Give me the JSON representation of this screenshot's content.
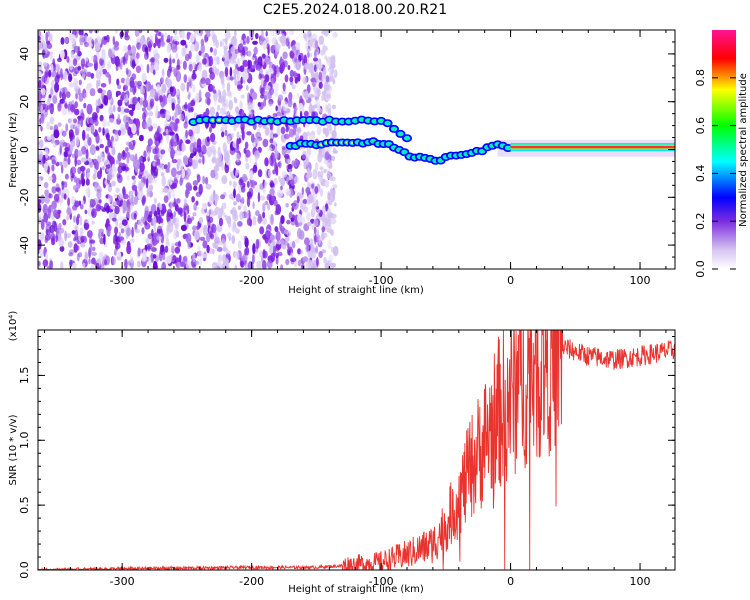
{
  "figure": {
    "title": "C2E5.2024.018.00.20.R21"
  },
  "colors": {
    "snr_line": "#e8332e",
    "frame": "#000000",
    "noise": "#8a2be2",
    "colorbar": [
      "#ffffff",
      "#b39ddb",
      "#7c2ce0",
      "#0000ff",
      "#00ffff",
      "#00ff00",
      "#ffff00",
      "#ff0000",
      "#ff1493"
    ]
  },
  "chart_data": [
    {
      "type": "heatmap",
      "title": "",
      "xlabel": "Height of straight line (km)",
      "ylabel": "Frequency (Hz)",
      "xlim": [
        -365,
        127
      ],
      "ylim": [
        -50,
        50
      ],
      "xticks": [
        "-300",
        "-200",
        "-100",
        "0",
        "100"
      ],
      "yticks": [
        "-40",
        "-20",
        "0",
        "20",
        "40"
      ],
      "colorbar": {
        "label": "Normalized spectral amplitude",
        "range": [
          0,
          1
        ],
        "ticks": [
          "0.0",
          "0.2",
          "0.4",
          "0.6",
          "0.8"
        ]
      },
      "noise_region_x": [
        -365,
        -135
      ],
      "tone_upper": {
        "x": [
          -245,
          -230,
          -200,
          -170,
          -150,
          -140,
          -120,
          -100,
          -95,
          -90,
          -85,
          -80
        ],
        "y": [
          12,
          12,
          12,
          12,
          12,
          12,
          12,
          12,
          11,
          9,
          7,
          5
        ]
      },
      "tone_lower": {
        "x": [
          -170,
          -150,
          -135,
          -120,
          -105,
          -95,
          -85,
          -75,
          -65,
          -58,
          -50,
          -40,
          -30,
          -20,
          -10,
          0,
          20,
          60,
          100,
          127
        ],
        "y": [
          2,
          2,
          3,
          3,
          3,
          2,
          -1,
          -3,
          -4,
          -5,
          -3,
          -2,
          -1,
          0,
          2,
          1,
          1,
          1,
          1,
          1
        ]
      }
    },
    {
      "type": "line",
      "title": "",
      "xlabel": "Height of straight line (km)",
      "ylabel": "SNR (10 * v/v)",
      "y_multiplier": "(x10⁴)",
      "xlim": [
        -365,
        127
      ],
      "ylim": [
        0,
        1.85
      ],
      "xticks": [
        "-300",
        "-200",
        "-100",
        "0",
        "100"
      ],
      "yticks": [
        "0.0",
        "0.5",
        "1.0",
        "1.5"
      ],
      "series": [
        {
          "x": [
            -365,
            -300,
            -200,
            -150,
            -120,
            -100,
            -80,
            -60,
            -50,
            -40,
            -30,
            -20,
            -10,
            0,
            10,
            20,
            30,
            40,
            60,
            80,
            100,
            127
          ],
          "y": [
            0.0,
            0.01,
            0.02,
            0.02,
            0.04,
            0.06,
            0.12,
            0.2,
            0.35,
            0.55,
            0.8,
            1.0,
            1.2,
            1.35,
            1.5,
            1.6,
            1.7,
            1.72,
            1.65,
            1.62,
            1.65,
            1.7
          ]
        }
      ]
    }
  ]
}
